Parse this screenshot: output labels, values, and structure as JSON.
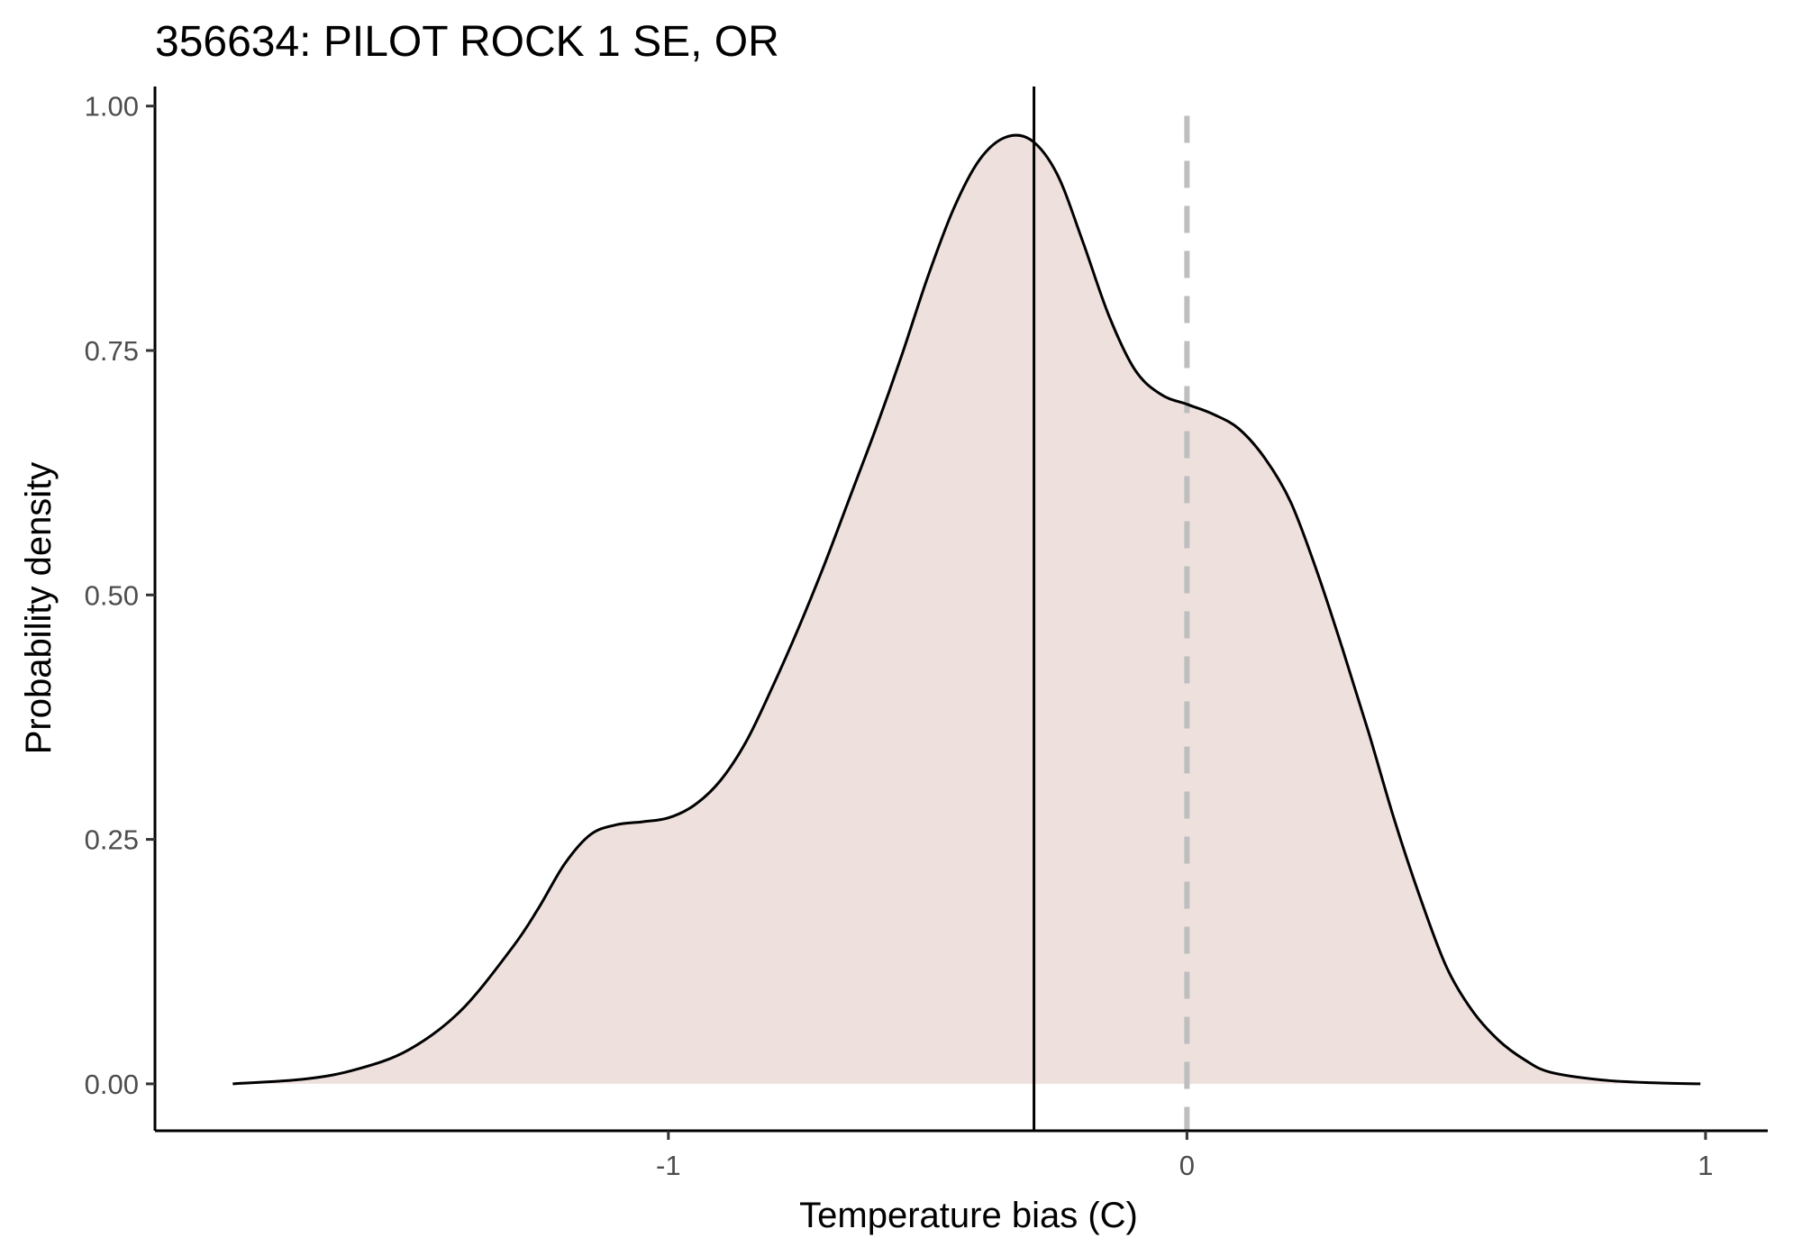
{
  "chart_data": {
    "type": "area",
    "title": "356634: PILOT ROCK 1 SE, OR",
    "xlabel": "Temperature bias (C)",
    "ylabel": "Probability density",
    "xlim": [
      -1.99,
      1.12
    ],
    "ylim": [
      -0.048,
      1.02
    ],
    "x_ticks": [
      -1,
      0,
      1
    ],
    "x_tick_labels": [
      "-1",
      "0",
      "1"
    ],
    "y_ticks": [
      0,
      0.25,
      0.5,
      0.75,
      1.0
    ],
    "y_tick_labels": [
      "0.00",
      "0.25",
      "0.50",
      "0.75",
      "1.00"
    ],
    "grid": false,
    "legend": "none",
    "fill_color": "#ede0dd",
    "line_color": "#000000",
    "reference_lines": [
      {
        "x": -0.295,
        "style": "solid",
        "color": "#000000"
      },
      {
        "x": 0.0,
        "style": "dashed",
        "color": "#bebebe"
      }
    ],
    "series": [
      {
        "x": [
          -1.84,
          -1.7,
          -1.6,
          -1.5,
          -1.4,
          -1.3,
          -1.25,
          -1.2,
          -1.15,
          -1.1,
          -1.05,
          -1.0,
          -0.95,
          -0.9,
          -0.85,
          -0.8,
          -0.75,
          -0.7,
          -0.65,
          -0.6,
          -0.55,
          -0.5,
          -0.45,
          -0.4,
          -0.35,
          -0.3,
          -0.25,
          -0.2,
          -0.15,
          -0.1,
          -0.05,
          0.0,
          0.05,
          0.1,
          0.15,
          0.2,
          0.25,
          0.3,
          0.35,
          0.4,
          0.45,
          0.5,
          0.55,
          0.6,
          0.65,
          0.7,
          0.8,
          0.9,
          0.99
        ],
        "y": [
          0.0,
          0.005,
          0.015,
          0.035,
          0.075,
          0.14,
          0.18,
          0.225,
          0.255,
          0.265,
          0.268,
          0.272,
          0.285,
          0.31,
          0.35,
          0.405,
          0.465,
          0.53,
          0.6,
          0.67,
          0.745,
          0.825,
          0.895,
          0.945,
          0.968,
          0.965,
          0.93,
          0.86,
          0.785,
          0.73,
          0.705,
          0.695,
          0.685,
          0.67,
          0.64,
          0.595,
          0.525,
          0.445,
          0.36,
          0.27,
          0.19,
          0.12,
          0.075,
          0.045,
          0.025,
          0.012,
          0.004,
          0.001,
          0.0
        ]
      }
    ]
  }
}
